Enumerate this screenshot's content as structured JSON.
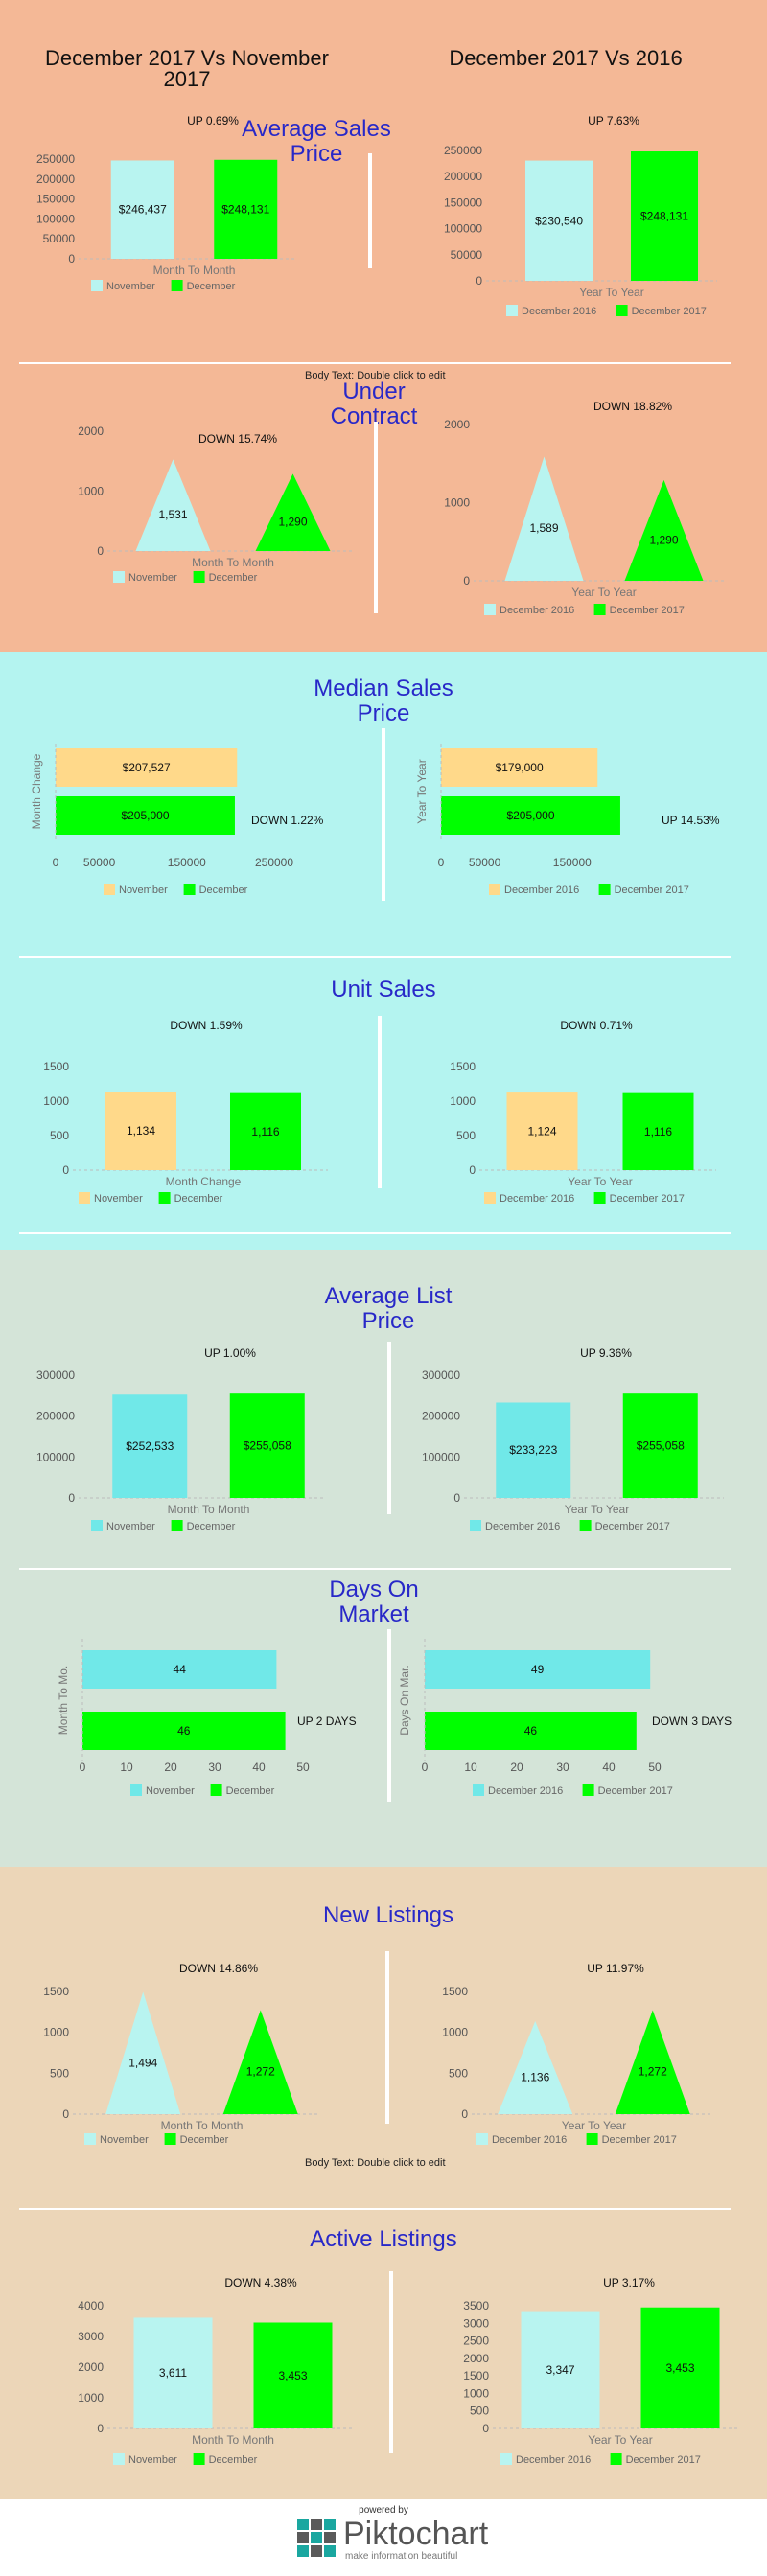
{
  "headers": {
    "left": "December 2017 Vs November 2017",
    "right": "December 2017 Vs 2016"
  },
  "notes": {
    "body_text_1": "Body Text: Double click to edit",
    "body_text_2": "Body Text: Double click to edit"
  },
  "section_titles": {
    "avg_sales_price": "Average Sales Price",
    "under_contract": "Under Contract",
    "median_sales_price": "Median Sales Price",
    "unit_sales": "Unit Sales",
    "avg_list_price": "Average List Price",
    "days_on_market": "Days On Market",
    "new_listings": "New Listings",
    "active_listings": "Active Listings"
  },
  "colors": {
    "section1_bg": "#f4b896",
    "section2_bg": "#b4f4f0",
    "section3_bg": "#d4e4d8",
    "section4_bg": "#ecd6b8",
    "title_blue": "#2828c8",
    "cyan_light": "#b8f4f0",
    "cyan_mid": "#70e8e8",
    "green": "#00ff00",
    "yellow": "#ffd98a"
  },
  "footer": {
    "powered_by": "powered by",
    "brand": "Piktochart",
    "tagline": "make information beautiful"
  },
  "chart_data": [
    {
      "id": "asp_mtm",
      "type": "bar",
      "title": "Average Sales Price",
      "categories": [
        "November",
        "December"
      ],
      "values": [
        246437,
        248131
      ],
      "labels": [
        "$246,437",
        "$248,131"
      ],
      "xlabel": "Month To Month",
      "change": "UP 0.69%",
      "ylim": [
        0,
        250000
      ],
      "yticks": [
        0,
        50000,
        100000,
        150000,
        200000,
        250000
      ],
      "colors": [
        "#b8f4f0",
        "#00ff00"
      ]
    },
    {
      "id": "asp_yty",
      "type": "bar",
      "title": "Average Sales Price",
      "categories": [
        "December 2016",
        "December 2017"
      ],
      "values": [
        230540,
        248131
      ],
      "labels": [
        "$230,540",
        "$248,131"
      ],
      "xlabel": "Year To Year",
      "change": "UP 7.63%",
      "ylim": [
        0,
        250000
      ],
      "yticks": [
        0,
        50000,
        100000,
        150000,
        200000,
        250000
      ],
      "colors": [
        "#b8f4f0",
        "#00ff00"
      ]
    },
    {
      "id": "uc_mtm",
      "type": "triangle",
      "title": "Under Contract",
      "categories": [
        "November",
        "December"
      ],
      "values": [
        1531,
        1290
      ],
      "labels": [
        "1,531",
        "1,290"
      ],
      "xlabel": "Month To Month",
      "change": "DOWN 15.74%",
      "ylim": [
        0,
        2000
      ],
      "yticks": [
        0,
        1000,
        2000
      ],
      "colors": [
        "#b8f4f0",
        "#00ff00"
      ]
    },
    {
      "id": "uc_yty",
      "type": "triangle",
      "title": "Under Contract",
      "categories": [
        "December 2016",
        "December 2017"
      ],
      "values": [
        1589,
        1290
      ],
      "labels": [
        "1,589",
        "1,290"
      ],
      "xlabel": "Year To Year",
      "change": "DOWN 18.82%",
      "ylim": [
        0,
        2000
      ],
      "yticks": [
        0,
        1000,
        2000
      ],
      "colors": [
        "#b8f4f0",
        "#00ff00"
      ]
    },
    {
      "id": "msp_mtm",
      "type": "hbar",
      "title": "Median Sales Price",
      "categories": [
        "November",
        "December"
      ],
      "values": [
        207527,
        205000
      ],
      "labels": [
        "$207,527",
        "$205,000"
      ],
      "ylabel": "Month Change",
      "change": "DOWN 1.22%",
      "xlim": [
        0,
        250000
      ],
      "xticks": [
        0,
        50000,
        150000,
        250000
      ],
      "xtick_labels": [
        "0",
        "50000",
        "150000",
        "250000"
      ],
      "colors": [
        "#ffd98a",
        "#00ff00"
      ]
    },
    {
      "id": "msp_yty",
      "type": "hbar",
      "title": "Median Sales Price",
      "categories": [
        "December 2016",
        "December 2017"
      ],
      "values": [
        179000,
        205000
      ],
      "labels": [
        "$179,000",
        "$205,000"
      ],
      "ylabel": "Year To Year",
      "change": "UP 14.53%",
      "xlim": [
        0,
        250000
      ],
      "xticks": [
        0,
        50000,
        150000
      ],
      "xtick_labels": [
        "0",
        "50000",
        "150000"
      ],
      "colors": [
        "#ffd98a",
        "#00ff00"
      ]
    },
    {
      "id": "us_mtm",
      "type": "bar",
      "title": "Unit Sales",
      "categories": [
        "November",
        "December"
      ],
      "values": [
        1134,
        1116
      ],
      "labels": [
        "1,134",
        "1,116"
      ],
      "xlabel": "Month Change",
      "change": "DOWN 1.59%",
      "ylim": [
        0,
        1500
      ],
      "yticks": [
        0,
        500,
        1000,
        1500
      ],
      "colors": [
        "#ffd98a",
        "#00ff00"
      ]
    },
    {
      "id": "us_yty",
      "type": "bar",
      "title": "Unit Sales",
      "categories": [
        "December 2016",
        "December 2017"
      ],
      "values": [
        1124,
        1116
      ],
      "labels": [
        "1,124",
        "1,116"
      ],
      "xlabel": "Year To Year",
      "change": "DOWN 0.71%",
      "ylim": [
        0,
        1500
      ],
      "yticks": [
        0,
        500,
        1000,
        1500
      ],
      "colors": [
        "#ffd98a",
        "#00ff00"
      ]
    },
    {
      "id": "alp_mtm",
      "type": "bar",
      "title": "Average List Price",
      "categories": [
        "November",
        "December"
      ],
      "values": [
        252533,
        255058
      ],
      "labels": [
        "$252,533",
        "$255,058"
      ],
      "xlabel": "Month To Month",
      "change": "UP 1.00%",
      "ylim": [
        0,
        300000
      ],
      "yticks": [
        0,
        100000,
        200000,
        300000
      ],
      "colors": [
        "#70e8e8",
        "#00ff00"
      ]
    },
    {
      "id": "alp_yty",
      "type": "bar",
      "title": "Average List Price",
      "categories": [
        "December 2016",
        "December 2017"
      ],
      "values": [
        233223,
        255058
      ],
      "labels": [
        "$233,223",
        "$255,058"
      ],
      "xlabel": "Year To Year",
      "change": "UP 9.36%",
      "ylim": [
        0,
        300000
      ],
      "yticks": [
        0,
        100000,
        200000,
        300000
      ],
      "colors": [
        "#70e8e8",
        "#00ff00"
      ]
    },
    {
      "id": "dom_mtm",
      "type": "hbar",
      "title": "Days On Market",
      "categories": [
        "November",
        "December"
      ],
      "values": [
        44,
        46
      ],
      "labels": [
        "44",
        "46"
      ],
      "ylabel": "Month To Mo.",
      "change": "UP 2 DAYS",
      "xlim": [
        0,
        50
      ],
      "xticks": [
        0,
        10,
        20,
        30,
        40,
        50
      ],
      "xtick_labels": [
        "0",
        "10",
        "20",
        "30",
        "40",
        "50"
      ],
      "colors": [
        "#70e8e8",
        "#00ff00"
      ]
    },
    {
      "id": "dom_yty",
      "type": "hbar",
      "title": "Days On Market",
      "categories": [
        "December 2016",
        "December 2017"
      ],
      "values": [
        49,
        46
      ],
      "labels": [
        "49",
        "46"
      ],
      "ylabel": "Days On Mar.",
      "change": "DOWN 3 DAYS",
      "xlim": [
        0,
        50
      ],
      "xticks": [
        0,
        10,
        20,
        30,
        40,
        50
      ],
      "xtick_labels": [
        "0",
        "10",
        "20",
        "30",
        "40",
        "50"
      ],
      "colors": [
        "#70e8e8",
        "#00ff00"
      ]
    },
    {
      "id": "nl_mtm",
      "type": "triangle",
      "title": "New Listings",
      "categories": [
        "November",
        "December"
      ],
      "values": [
        1494,
        1272
      ],
      "labels": [
        "1,494",
        "1,272"
      ],
      "xlabel": "Month To Month",
      "change": "DOWN 14.86%",
      "ylim": [
        0,
        1500
      ],
      "yticks": [
        0,
        500,
        1000,
        1500
      ],
      "colors": [
        "#b8f4f0",
        "#00ff00"
      ]
    },
    {
      "id": "nl_yty",
      "type": "triangle",
      "title": "New Listings",
      "categories": [
        "December 2016",
        "December 2017"
      ],
      "values": [
        1136,
        1272
      ],
      "labels": [
        "1,136",
        "1,272"
      ],
      "xlabel": "Year To Year",
      "change": "UP 11.97%",
      "ylim": [
        0,
        1500
      ],
      "yticks": [
        0,
        500,
        1000,
        1500
      ],
      "colors": [
        "#b8f4f0",
        "#00ff00"
      ]
    },
    {
      "id": "al_mtm",
      "type": "bar",
      "title": "Active Listings",
      "categories": [
        "November",
        "December"
      ],
      "values": [
        3611,
        3453
      ],
      "labels": [
        "3,611",
        "3,453"
      ],
      "xlabel": "Month To Month",
      "change": "DOWN 4.38%",
      "ylim": [
        0,
        4000
      ],
      "yticks": [
        0,
        1000,
        2000,
        3000,
        4000
      ],
      "colors": [
        "#b8f4f0",
        "#00ff00"
      ]
    },
    {
      "id": "al_yty",
      "type": "bar",
      "title": "Active Listings",
      "categories": [
        "December 2016",
        "December 2017"
      ],
      "values": [
        3347,
        3453
      ],
      "labels": [
        "3,347",
        "3,453"
      ],
      "xlabel": "Year To Year",
      "change": "UP 3.17%",
      "ylim": [
        0,
        3500
      ],
      "yticks": [
        0,
        500,
        1000,
        1500,
        2000,
        2500,
        3000,
        3500
      ],
      "colors": [
        "#b8f4f0",
        "#00ff00"
      ]
    }
  ]
}
